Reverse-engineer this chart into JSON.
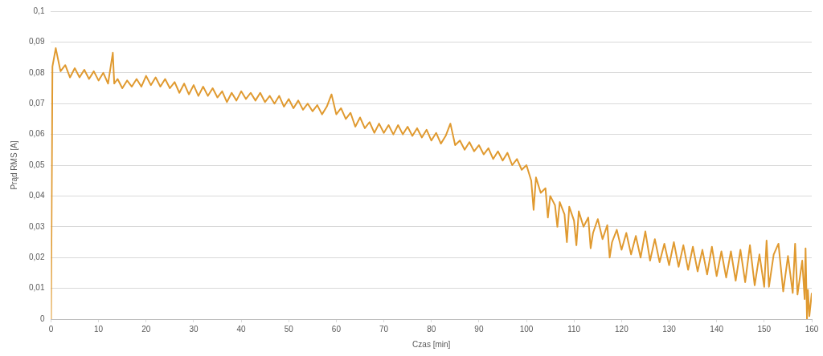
{
  "chart_data": {
    "type": "line",
    "xlabel": "Czas [min]",
    "ylabel": "Prąd RMS [A]",
    "grid": "y",
    "marker": "none",
    "line_style": "solid",
    "xlim": [
      0,
      160
    ],
    "xticks": [
      0,
      10,
      20,
      30,
      40,
      50,
      60,
      70,
      80,
      90,
      100,
      110,
      120,
      130,
      140,
      150,
      160
    ],
    "ylim": [
      0,
      0.1
    ],
    "yticks": [
      0,
      {
        "value": 0.01,
        "label": "0,01"
      },
      {
        "value": 0.02,
        "label": "0,02"
      },
      {
        "value": 0.03,
        "label": "0,03"
      },
      {
        "value": 0.04,
        "label": "0,04"
      },
      {
        "value": 0.05,
        "label": "0,05"
      },
      {
        "value": 0.06,
        "label": "0,06"
      },
      {
        "value": 0.07,
        "label": "0,07"
      },
      {
        "value": 0.08,
        "label": "0,08"
      },
      {
        "value": 0.09,
        "label": "0,09"
      },
      {
        "value": 0.1,
        "label": "0,1"
      }
    ],
    "series": [
      {
        "color": "#e09a30",
        "x": [
          0,
          0.3,
          1,
          2,
          3,
          4,
          5,
          6,
          7,
          8,
          9,
          10,
          11,
          12,
          13,
          13.3,
          14,
          15,
          16,
          17,
          18,
          19,
          20,
          21,
          22,
          23,
          24,
          25,
          26,
          27,
          28,
          29,
          30,
          31,
          32,
          33,
          34,
          35,
          36,
          37,
          38,
          39,
          40,
          41,
          42,
          43,
          44,
          45,
          46,
          47,
          48,
          49,
          50,
          51,
          52,
          53,
          54,
          55,
          56,
          57,
          58,
          59,
          60,
          61,
          62,
          63,
          64,
          65,
          66,
          67,
          68,
          69,
          70,
          71,
          72,
          73,
          74,
          75,
          76,
          77,
          78,
          79,
          80,
          81,
          82,
          83,
          84,
          85,
          86,
          87,
          88,
          89,
          90,
          91,
          92,
          93,
          94,
          95,
          96,
          97,
          98,
          99,
          100,
          101,
          101.5,
          102,
          103,
          104,
          104.5,
          105,
          106,
          106.5,
          107,
          108,
          108.5,
          109,
          110,
          110.5,
          111,
          112,
          113,
          113.5,
          114,
          115,
          116,
          117,
          117.5,
          118,
          119,
          120,
          121,
          122,
          123,
          124,
          125,
          126,
          127,
          128,
          129,
          130,
          131,
          132,
          133,
          134,
          135,
          136,
          137,
          138,
          139,
          140,
          141,
          142,
          143,
          144,
          145,
          146,
          147,
          148,
          149,
          150,
          150.5,
          151,
          152,
          153,
          154,
          155,
          156,
          156.5,
          157,
          158,
          158.5,
          158.7,
          159,
          159.2,
          159.5,
          160
        ],
        "values": [
          0,
          0.082,
          0.088,
          0.0805,
          0.0825,
          0.0785,
          0.0815,
          0.0785,
          0.081,
          0.078,
          0.0805,
          0.0775,
          0.08,
          0.0765,
          0.0865,
          0.0765,
          0.078,
          0.075,
          0.0775,
          0.0755,
          0.078,
          0.0755,
          0.079,
          0.076,
          0.0785,
          0.0755,
          0.078,
          0.075,
          0.077,
          0.0735,
          0.0765,
          0.073,
          0.076,
          0.0725,
          0.0755,
          0.0725,
          0.075,
          0.072,
          0.074,
          0.0705,
          0.0735,
          0.071,
          0.074,
          0.0715,
          0.0735,
          0.071,
          0.0735,
          0.0705,
          0.0725,
          0.07,
          0.0725,
          0.069,
          0.0715,
          0.0685,
          0.071,
          0.068,
          0.07,
          0.0675,
          0.0695,
          0.0665,
          0.069,
          0.073,
          0.0665,
          0.0685,
          0.065,
          0.067,
          0.0625,
          0.0655,
          0.062,
          0.064,
          0.0605,
          0.0635,
          0.0605,
          0.063,
          0.06,
          0.063,
          0.06,
          0.0625,
          0.0595,
          0.062,
          0.059,
          0.0615,
          0.058,
          0.0605,
          0.057,
          0.0595,
          0.0635,
          0.0565,
          0.058,
          0.055,
          0.0575,
          0.0545,
          0.0565,
          0.0535,
          0.0555,
          0.052,
          0.0545,
          0.0515,
          0.054,
          0.05,
          0.052,
          0.0485,
          0.05,
          0.045,
          0.0355,
          0.046,
          0.041,
          0.0425,
          0.033,
          0.04,
          0.037,
          0.03,
          0.038,
          0.034,
          0.025,
          0.0365,
          0.032,
          0.024,
          0.035,
          0.03,
          0.033,
          0.023,
          0.028,
          0.0325,
          0.026,
          0.0305,
          0.02,
          0.025,
          0.029,
          0.0225,
          0.028,
          0.021,
          0.027,
          0.02,
          0.0285,
          0.019,
          0.026,
          0.0185,
          0.0245,
          0.0175,
          0.025,
          0.017,
          0.024,
          0.016,
          0.0235,
          0.0155,
          0.0225,
          0.0145,
          0.0235,
          0.014,
          0.022,
          0.0135,
          0.022,
          0.0125,
          0.0225,
          0.012,
          0.024,
          0.011,
          0.021,
          0.0105,
          0.0255,
          0.0105,
          0.021,
          0.0245,
          0.009,
          0.0205,
          0.0085,
          0.0245,
          0.008,
          0.019,
          0.0065,
          0.023,
          0,
          0.0095,
          0.001,
          0.0085
        ]
      }
    ]
  }
}
